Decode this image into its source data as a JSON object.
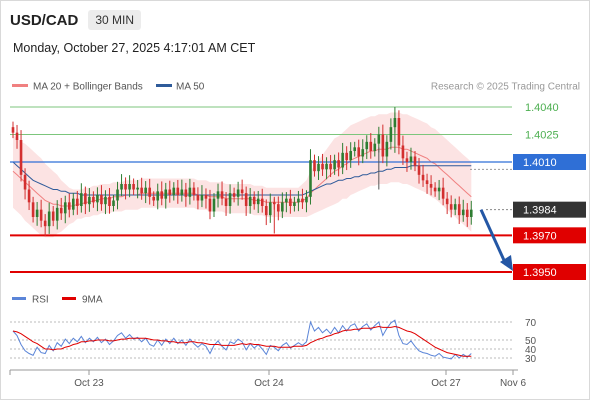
{
  "header": {
    "symbol": "USD/CAD",
    "timeframe": "30 MIN"
  },
  "timestamp": "Monday, October 27, 2025 4:17:01 AM CET",
  "credit": "Research © 2025 Trading Central",
  "legend": {
    "main": [
      {
        "label": "MA 20 + Bollinger Bands",
        "color": "#f08080"
      },
      {
        "label": "MA 50",
        "color": "#2f5b9a"
      }
    ],
    "indicator": [
      {
        "label": "RSI",
        "color": "#5b85d8"
      },
      {
        "label": "9MA",
        "color": "#e00000"
      }
    ]
  },
  "colors": {
    "up": "#2e7d32",
    "down": "#d32f2f",
    "resistance": "#7cc67c",
    "pivot": "#2f6fd6",
    "support": "#e00000",
    "last": "#333333",
    "arrow": "#2457a5"
  },
  "chart_data": [
    {
      "type": "candlestick",
      "title": "",
      "ylim": [
        1.3945,
        1.4045
      ],
      "x_ticks": [
        "Oct 23",
        "Oct 24",
        "Oct 27",
        "Nov 6"
      ],
      "levels": [
        {
          "value": 1.404,
          "label": "1.4040",
          "kind": "resistance"
        },
        {
          "value": 1.4025,
          "label": "1.4025",
          "kind": "resistance"
        },
        {
          "value": 1.401,
          "label": "1.4010",
          "kind": "pivot"
        },
        {
          "value": 1.3984,
          "label": "1.3984",
          "kind": "last"
        },
        {
          "value": 1.397,
          "label": "1.3970",
          "kind": "support"
        },
        {
          "value": 1.395,
          "label": "1.3950",
          "kind": "support"
        }
      ],
      "closes": [
        1.4026,
        1.4022,
        1.4003,
        1.3995,
        1.3988,
        1.398,
        1.3984,
        1.3978,
        1.3975,
        1.3983,
        1.3978,
        1.3985,
        1.3982,
        1.3988,
        1.3984,
        1.399,
        1.3986,
        1.3993,
        1.3987,
        1.3991,
        1.3988,
        1.3992,
        1.3987,
        1.3991,
        1.3986,
        1.3989,
        1.3995,
        1.3998,
        1.3995,
        1.3998,
        1.3995,
        1.3996,
        1.3993,
        1.3996,
        1.3991,
        1.3989,
        1.3994,
        1.399,
        1.3995,
        1.3992,
        1.3996,
        1.3992,
        1.3995,
        1.3991,
        1.3996,
        1.3992,
        1.3989,
        1.3992,
        1.399,
        1.3983,
        1.399,
        1.3994,
        1.399,
        1.3986,
        1.3993,
        1.3991,
        1.3995,
        1.3993,
        1.3986,
        1.3991,
        1.3987,
        1.399,
        1.3986,
        1.3981,
        1.3988,
        1.3987,
        1.3983,
        1.3988,
        1.399,
        1.3986,
        1.3988,
        1.399,
        1.3988,
        1.3991,
        1.4011,
        1.4005,
        1.4009,
        1.4006,
        1.4009,
        1.4006,
        1.4011,
        1.4007,
        1.4015,
        1.4011,
        1.4016,
        1.4018,
        1.4013,
        1.4017,
        1.4021,
        1.4016,
        1.402,
        1.4025,
        1.4013,
        1.4021,
        1.4029,
        1.4034,
        1.4019,
        1.4012,
        1.401,
        1.4013,
        1.4008,
        1.4003,
        1.4,
        1.3998,
        1.3996,
        1.3994,
        1.3996,
        1.399,
        1.3987,
        1.3984,
        1.3987,
        1.3981,
        1.3984,
        1.398,
        1.3984
      ],
      "ma20": [
        1.4005,
        1.4003,
        1.4001,
        1.3999,
        1.3997,
        1.3995,
        1.3993,
        1.3991,
        1.3989,
        1.3988,
        1.3987,
        1.3987,
        1.3986,
        1.3986,
        1.3986,
        1.3986,
        1.3987,
        1.3987,
        1.3988,
        1.3988,
        1.3989,
        1.3989,
        1.399,
        1.399,
        1.399,
        1.3991,
        1.3991,
        1.3991,
        1.3992,
        1.3992,
        1.3992,
        1.3992,
        1.3993,
        1.3993,
        1.3993,
        1.3993,
        1.3993,
        1.3993,
        1.3993,
        1.3993,
        1.3993,
        1.3993,
        1.3993,
        1.3993,
        1.3993,
        1.3993,
        1.3992,
        1.3992,
        1.3992,
        1.3991,
        1.3991,
        1.3991,
        1.3991,
        1.399,
        1.399,
        1.399,
        1.399,
        1.399,
        1.399,
        1.399,
        1.3989,
        1.3989,
        1.3989,
        1.3988,
        1.3988,
        1.3988,
        1.3988,
        1.3988,
        1.3988,
        1.3988,
        1.3988,
        1.3988,
        1.3989,
        1.399,
        1.3993,
        1.3995,
        1.3997,
        1.3999,
        1.4001,
        1.4003,
        1.4005,
        1.4006,
        1.4008,
        1.4009,
        1.4011,
        1.4012,
        1.4013,
        1.4014,
        1.4015,
        1.4016,
        1.4016,
        1.4017,
        1.4017,
        1.4017,
        1.4018,
        1.4018,
        1.4018,
        1.4017,
        1.4017,
        1.4016,
        1.4015,
        1.4014,
        1.4013,
        1.4012,
        1.401,
        1.4009,
        1.4007,
        1.4005,
        1.4003,
        1.4001,
        1.3999,
        1.3997,
        1.3995,
        1.3993,
        1.3991
      ],
      "band_width": [
        0.002,
        0.002,
        0.002,
        0.0021,
        0.0021,
        0.0021,
        0.0021,
        0.0021,
        0.002,
        0.0019,
        0.0018,
        0.0016,
        0.0014,
        0.0012,
        0.001,
        0.0009,
        0.0008,
        0.0008,
        0.0008,
        0.0008,
        0.0008,
        0.0008,
        0.0008,
        0.0008,
        0.0008,
        0.0008,
        0.0008,
        0.0008,
        0.0008,
        0.0008,
        0.0008,
        0.0008,
        0.0008,
        0.0008,
        0.0008,
        0.0008,
        0.0008,
        0.0008,
        0.0008,
        0.0008,
        0.0008,
        0.0008,
        0.0008,
        0.0008,
        0.0008,
        0.0008,
        0.0008,
        0.0008,
        0.0008,
        0.0008,
        0.0008,
        0.0008,
        0.0008,
        0.0008,
        0.0008,
        0.0008,
        0.0008,
        0.0008,
        0.0008,
        0.0008,
        0.0008,
        0.0008,
        0.0008,
        0.0008,
        0.0008,
        0.0008,
        0.0008,
        0.0008,
        0.0008,
        0.0008,
        0.0008,
        0.0008,
        0.0009,
        0.001,
        0.0012,
        0.0013,
        0.0014,
        0.0015,
        0.0016,
        0.0017,
        0.0018,
        0.0018,
        0.0018,
        0.0019,
        0.0019,
        0.0019,
        0.0019,
        0.0019,
        0.0019,
        0.0019,
        0.0019,
        0.0019,
        0.0019,
        0.0019,
        0.0019,
        0.0019,
        0.0019,
        0.0019,
        0.0019,
        0.0019,
        0.0019,
        0.0019,
        0.0019,
        0.0019,
        0.0019,
        0.0019,
        0.0019,
        0.0019,
        0.0019,
        0.0019,
        0.0019,
        0.0019,
        0.0019,
        0.0019,
        0.0019
      ],
      "ma50": [
        1.401,
        1.4008,
        1.4006,
        1.4004,
        1.4002,
        1.4,
        1.3999,
        1.3998,
        1.3997,
        1.3996,
        1.3995,
        1.3995,
        1.3994,
        1.3994,
        1.3993,
        1.3993,
        1.3993,
        1.3992,
        1.3992,
        1.3992,
        1.3992,
        1.3992,
        1.3992,
        1.3992,
        1.3992,
        1.3992,
        1.3992,
        1.3992,
        1.3992,
        1.3992,
        1.3992,
        1.3992,
        1.3992,
        1.3992,
        1.3992,
        1.3992,
        1.3992,
        1.3992,
        1.3992,
        1.3992,
        1.3992,
        1.3992,
        1.3992,
        1.3992,
        1.3992,
        1.3992,
        1.3992,
        1.3992,
        1.3992,
        1.3992,
        1.3992,
        1.3992,
        1.3992,
        1.3992,
        1.3992,
        1.3992,
        1.3992,
        1.3992,
        1.3992,
        1.3992,
        1.3992,
        1.3992,
        1.3992,
        1.3992,
        1.3992,
        1.3992,
        1.3992,
        1.3992,
        1.3992,
        1.3992,
        1.3992,
        1.3992,
        1.3992,
        1.3993,
        1.3994,
        1.3995,
        1.3996,
        1.3997,
        1.3998,
        1.3998,
        1.3999,
        1.4,
        1.4,
        1.4001,
        1.4001,
        1.4002,
        1.4002,
        1.4003,
        1.4003,
        1.4004,
        1.4004,
        1.4005,
        1.4005,
        1.4006,
        1.4006,
        1.4007,
        1.4007,
        1.4007,
        1.4007,
        1.4008,
        1.4008,
        1.4008,
        1.4008,
        1.4008,
        1.4008,
        1.4008,
        1.4008,
        1.4008,
        1.4008,
        1.4008,
        1.4008,
        1.4008,
        1.4008,
        1.4008,
        1.4008
      ]
    },
    {
      "type": "line",
      "title": "",
      "ylim": [
        25,
        75
      ],
      "y_ticks": [
        70,
        50,
        40,
        30
      ],
      "series": [
        {
          "name": "RSI",
          "color": "#5b85d8",
          "values": [
            60,
            55,
            45,
            38,
            35,
            33,
            42,
            36,
            35,
            44,
            38,
            47,
            43,
            51,
            46,
            52,
            48,
            54,
            47,
            52,
            48,
            53,
            47,
            51,
            45,
            49,
            55,
            58,
            52,
            56,
            51,
            53,
            48,
            52,
            45,
            43,
            50,
            44,
            51,
            46,
            52,
            46,
            50,
            44,
            51,
            46,
            42,
            46,
            43,
            35,
            44,
            49,
            43,
            39,
            48,
            46,
            51,
            48,
            39,
            46,
            41,
            45,
            40,
            34,
            44,
            42,
            38,
            44,
            47,
            41,
            44,
            47,
            44,
            48,
            70,
            60,
            64,
            58,
            62,
            57,
            64,
            58,
            66,
            60,
            66,
            68,
            60,
            65,
            68,
            61,
            66,
            70,
            55,
            63,
            69,
            72,
            55,
            46,
            45,
            49,
            43,
            38,
            36,
            35,
            33,
            32,
            35,
            31,
            30,
            29,
            34,
            30,
            34,
            31,
            35
          ]
        },
        {
          "name": "9MA",
          "color": "#e00000",
          "values": [
            60,
            59,
            57,
            54,
            51,
            48,
            46,
            43,
            40,
            40,
            39,
            40,
            40,
            42,
            43,
            45,
            46,
            48,
            48,
            49,
            49,
            50,
            50,
            50,
            49,
            49,
            50,
            51,
            51,
            52,
            52,
            52,
            52,
            52,
            51,
            50,
            50,
            49,
            49,
            48,
            48,
            47,
            47,
            47,
            48,
            48,
            47,
            47,
            46,
            45,
            45,
            45,
            44,
            44,
            44,
            44,
            45,
            46,
            45,
            46,
            45,
            45,
            44,
            43,
            43,
            43,
            42,
            42,
            42,
            42,
            43,
            43,
            43,
            44,
            47,
            49,
            51,
            52,
            54,
            55,
            57,
            58,
            60,
            61,
            61,
            62,
            62,
            63,
            63,
            63,
            64,
            65,
            64,
            64,
            64,
            65,
            64,
            62,
            60,
            59,
            57,
            54,
            51,
            48,
            45,
            42,
            40,
            38,
            36,
            35,
            34,
            33,
            32,
            32,
            32
          ]
        }
      ]
    }
  ]
}
